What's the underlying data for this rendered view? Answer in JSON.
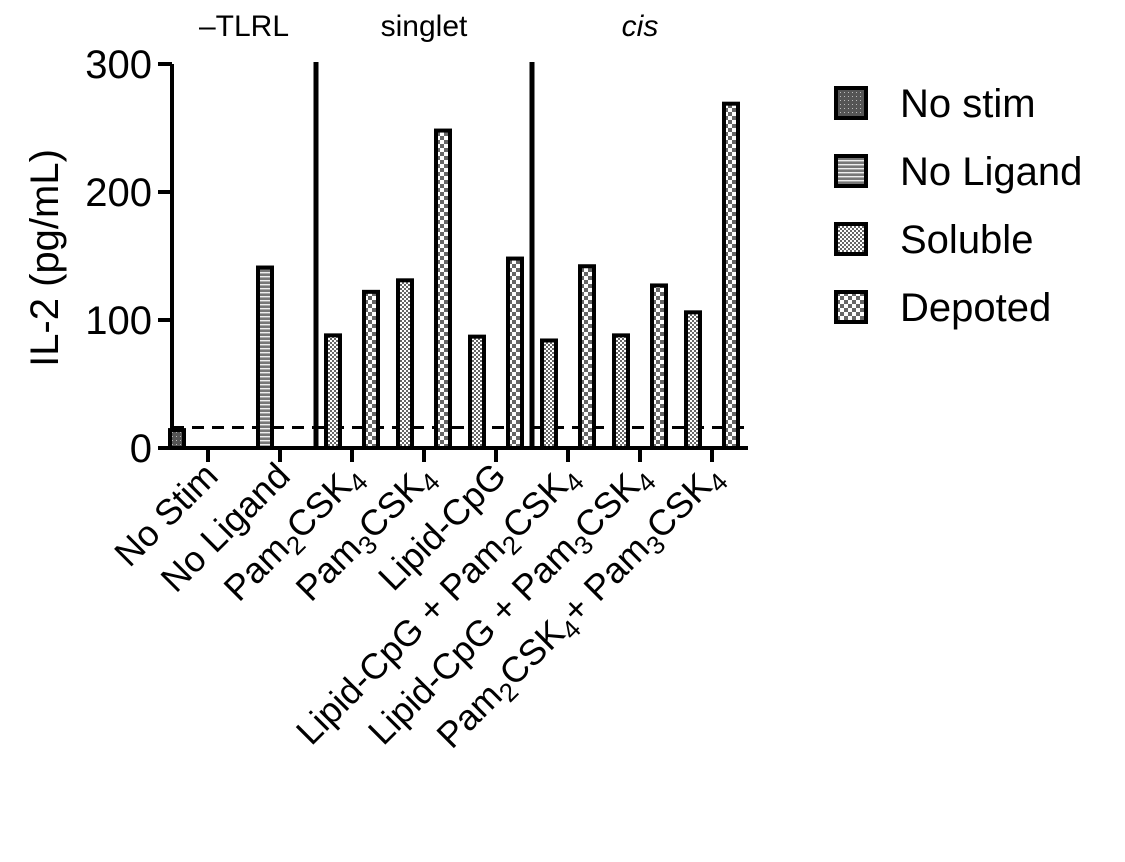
{
  "chart_data": {
    "type": "bar",
    "ylabel": "IL-2 (pg/mL)",
    "ylim": [
      0,
      300
    ],
    "yticks": [
      0,
      100,
      200,
      300
    ],
    "groups": [
      {
        "label": "–TLRL",
        "italic": false,
        "start": 0,
        "end": 1
      },
      {
        "label": "singlet",
        "italic": false,
        "start": 2,
        "end": 4
      },
      {
        "label": "cis",
        "italic": true,
        "start": 5,
        "end": 7
      }
    ],
    "categories": [
      {
        "label": "No Stim",
        "parts": [
          {
            "t": "No Stim"
          }
        ]
      },
      {
        "label": "No Ligand",
        "parts": [
          {
            "t": "No Ligand"
          }
        ]
      },
      {
        "label": "Pam2CSK4",
        "parts": [
          {
            "t": "Pam"
          },
          {
            "t": "2",
            "s": true
          },
          {
            "t": "CSK"
          },
          {
            "t": "4",
            "s": true
          }
        ]
      },
      {
        "label": "Pam3CSK4",
        "parts": [
          {
            "t": "Pam"
          },
          {
            "t": "3",
            "s": true
          },
          {
            "t": "CSK"
          },
          {
            "t": "4",
            "s": true
          }
        ]
      },
      {
        "label": "Lipid-CpG",
        "parts": [
          {
            "t": "Lipid-CpG"
          }
        ]
      },
      {
        "label": "Lipid-CpG + Pam2CSK4",
        "parts": [
          {
            "t": "Lipid-CpG + Pam"
          },
          {
            "t": "2",
            "s": true
          },
          {
            "t": "CSK"
          },
          {
            "t": "4",
            "s": true
          }
        ]
      },
      {
        "label": "Lipid-CpG + Pam3CSK4",
        "parts": [
          {
            "t": "Lipid-CpG + Pam"
          },
          {
            "t": "3",
            "s": true
          },
          {
            "t": "CSK"
          },
          {
            "t": "4",
            "s": true
          }
        ]
      },
      {
        "label": "Pam2CSK4+ Pam3CSK4",
        "parts": [
          {
            "t": "Pam"
          },
          {
            "t": "2",
            "s": true
          },
          {
            "t": "CSK"
          },
          {
            "t": "4",
            "s": true
          },
          {
            "t": "+ Pam"
          },
          {
            "t": "3",
            "s": true
          },
          {
            "t": "CSK"
          },
          {
            "t": "4",
            "s": true
          }
        ]
      }
    ],
    "series": [
      {
        "name": "No stim",
        "pattern": "nostim",
        "values": [
          14,
          null,
          null,
          null,
          null,
          null,
          null,
          null
        ]
      },
      {
        "name": "No Ligand",
        "pattern": "noligand",
        "values": [
          null,
          141,
          null,
          null,
          null,
          null,
          null,
          null
        ]
      },
      {
        "name": "Soluble",
        "pattern": "soluble",
        "values": [
          null,
          null,
          88,
          131,
          87,
          84,
          88,
          106
        ]
      },
      {
        "name": "Depoted",
        "pattern": "depoted",
        "values": [
          null,
          null,
          122,
          248,
          148,
          142,
          127,
          269
        ]
      }
    ],
    "baseline": 16,
    "legend_position": "right",
    "grid": false
  }
}
